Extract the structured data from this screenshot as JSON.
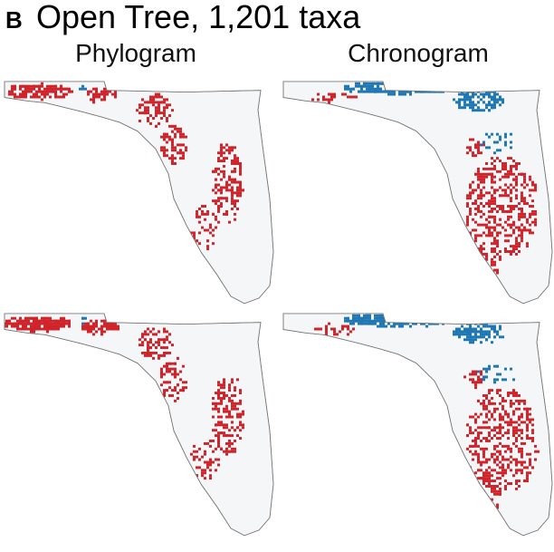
{
  "panel_label": "B",
  "title": "Open Tree, 1,201 taxa",
  "columns": [
    "Phylogram",
    "Chronogram"
  ]
}
